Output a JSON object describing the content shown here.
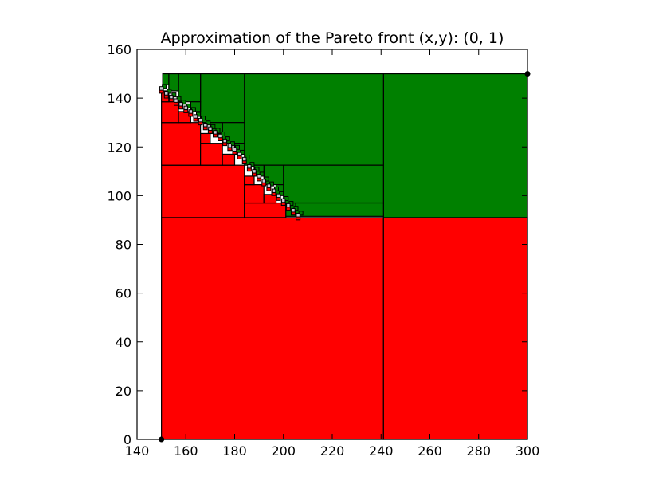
{
  "chart_data": {
    "type": "heatmap",
    "title": "Approximation of the Pareto front (x,y): (0, 1)",
    "xlabel": "",
    "ylabel": "",
    "xlim": [
      140,
      300
    ],
    "ylim": [
      0,
      160
    ],
    "x_ticks": [
      140,
      160,
      180,
      200,
      220,
      240,
      260,
      280,
      300
    ],
    "y_ticks": [
      0,
      20,
      40,
      60,
      80,
      100,
      120,
      140,
      160
    ],
    "grid": false,
    "colors": {
      "dominated": "#ff0000",
      "non_dominated": "#008000",
      "undetermined": "#c8c8d2",
      "edge": "#000000"
    },
    "pareto_points": [
      [
        150,
        144
      ],
      [
        152,
        142
      ],
      [
        154,
        140.5
      ],
      [
        156,
        139
      ],
      [
        158,
        137.5
      ],
      [
        160,
        136
      ],
      [
        162,
        134.5
      ],
      [
        164,
        132.5
      ],
      [
        166,
        131
      ],
      [
        168,
        129
      ],
      [
        170,
        127.5
      ],
      [
        172,
        126
      ],
      [
        174,
        124.5
      ],
      [
        176,
        122.5
      ],
      [
        178,
        120.5
      ],
      [
        180,
        119
      ],
      [
        182,
        117
      ],
      [
        184,
        115
      ],
      [
        186,
        112
      ],
      [
        188,
        110
      ],
      [
        190,
        108
      ],
      [
        192,
        106
      ],
      [
        194,
        104
      ],
      [
        196,
        102
      ],
      [
        198,
        100
      ],
      [
        200,
        98
      ],
      [
        202,
        96
      ],
      [
        204,
        94
      ],
      [
        206,
        92
      ]
    ],
    "regions": [
      {
        "kind": "dominated",
        "x": [
          150,
          241
        ],
        "y": [
          0,
          91
        ]
      },
      {
        "kind": "dominated",
        "x": [
          241,
          300
        ],
        "y": [
          0,
          91
        ]
      },
      {
        "kind": "dominated",
        "x": [
          150,
          184
        ],
        "y": [
          91,
          112.5
        ]
      },
      {
        "kind": "dominated",
        "x": [
          184,
          201
        ],
        "y": [
          91,
          97
        ]
      },
      {
        "kind": "dominated",
        "x": [
          150,
          166
        ],
        "y": [
          112.5,
          130
        ]
      },
      {
        "kind": "dominated",
        "x": [
          166,
          175
        ],
        "y": [
          112.5,
          121.5
        ]
      },
      {
        "kind": "dominated",
        "x": [
          184,
          192
        ],
        "y": [
          97,
          104.5
        ]
      },
      {
        "kind": "dominated",
        "x": [
          150,
          157
        ],
        "y": [
          130,
          138.5
        ]
      },
      {
        "kind": "dominated",
        "x": [
          175,
          180
        ],
        "y": [
          112.5,
          117
        ]
      },
      {
        "kind": "dominated",
        "x": [
          157,
          162
        ],
        "y": [
          130,
          134.5
        ]
      },
      {
        "kind": "dominated",
        "x": [
          192,
          197
        ],
        "y": [
          97,
          100.5
        ]
      },
      {
        "kind": "dominated",
        "x": [
          150,
          153
        ],
        "y": [
          138.5,
          143
        ]
      },
      {
        "kind": "dominated",
        "x": [
          184,
          188
        ],
        "y": [
          104.5,
          108
        ]
      },
      {
        "kind": "dominated",
        "x": [
          166,
          170
        ],
        "y": [
          121.5,
          125.5
        ]
      },
      {
        "kind": "non_dominated",
        "x": [
          241,
          300
        ],
        "y": [
          91,
          150
        ]
      },
      {
        "kind": "non_dominated",
        "x": [
          184,
          241
        ],
        "y": [
          112.5,
          150
        ]
      },
      {
        "kind": "non_dominated",
        "x": [
          200,
          241
        ],
        "y": [
          97,
          112.5
        ]
      },
      {
        "kind": "non_dominated",
        "x": [
          205,
          241
        ],
        "y": [
          91.5,
          97
        ]
      },
      {
        "kind": "non_dominated",
        "x": [
          166,
          184
        ],
        "y": [
          130,
          150
        ]
      },
      {
        "kind": "non_dominated",
        "x": [
          175,
          184
        ],
        "y": [
          121.5,
          130
        ]
      },
      {
        "kind": "non_dominated",
        "x": [
          157,
          166
        ],
        "y": [
          138.5,
          150
        ]
      },
      {
        "kind": "non_dominated",
        "x": [
          192,
          200
        ],
        "y": [
          104.5,
          112.5
        ]
      },
      {
        "kind": "non_dominated",
        "x": [
          180,
          184
        ],
        "y": [
          117,
          121.5
        ]
      },
      {
        "kind": "non_dominated",
        "x": [
          153,
          157
        ],
        "y": [
          143,
          150
        ]
      },
      {
        "kind": "non_dominated",
        "x": [
          162,
          166
        ],
        "y": [
          134.5,
          138.5
        ]
      },
      {
        "kind": "non_dominated",
        "x": [
          170,
          175
        ],
        "y": [
          125.5,
          130
        ]
      },
      {
        "kind": "non_dominated",
        "x": [
          188,
          192
        ],
        "y": [
          108,
          112.5
        ]
      },
      {
        "kind": "non_dominated",
        "x": [
          197,
          200
        ],
        "y": [
          100.5,
          104.5
        ]
      },
      {
        "kind": "non_dominated",
        "x": [
          150.5,
          153
        ],
        "y": [
          145.5,
          150
        ]
      },
      {
        "kind": "non_dominated",
        "x": [
          201,
          205
        ],
        "y": [
          91.5,
          97
        ]
      }
    ],
    "axis_markers": [
      [
        150,
        0
      ],
      [
        300,
        150
      ]
    ]
  }
}
